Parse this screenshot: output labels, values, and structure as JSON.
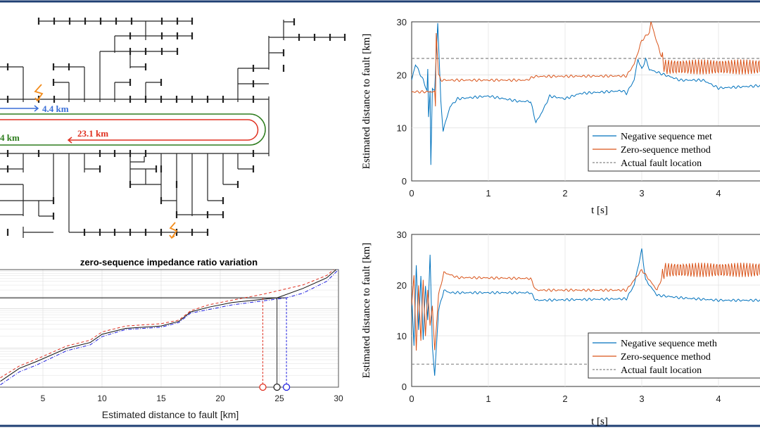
{
  "colors": {
    "frame": "#1f3f73",
    "negative": "#0072bd",
    "zero": "#d95319",
    "actual": "#888888",
    "blue_path": "#3a6fd8",
    "green_path": "#2e7d1e",
    "red_path": "#e03020",
    "fault": "#f28c1c"
  },
  "diagram": {
    "blue_label": "4.4 km",
    "red_label": "23.1 km",
    "green_label": "4 km",
    "icons": [
      "fault-lightning-icon",
      "fault-lightning-icon"
    ]
  },
  "chart_data": [
    {
      "type": "line",
      "title": "zero-sequence impedance ratio variation",
      "xlabel": "Estimated distance to fault [km]",
      "ylabel": "",
      "xticks": [
        "5",
        "10",
        "15",
        "20",
        "25",
        "30"
      ],
      "xlim": [
        1.4,
        30
      ],
      "yscale": "log",
      "grid": true,
      "series": [
        {
          "style": "red-dashed",
          "points": [
            [
              1.4,
              0.08
            ],
            [
              3,
              0.18
            ],
            [
              4.5,
              0.24
            ],
            [
              7,
              0.35
            ],
            [
              9,
              0.4
            ],
            [
              10,
              0.47
            ],
            [
              12,
              0.52
            ],
            [
              15,
              0.54
            ],
            [
              16.5,
              0.57
            ],
            [
              17.5,
              0.65
            ],
            [
              19,
              0.7
            ],
            [
              21,
              0.74
            ],
            [
              23.6,
              0.79
            ],
            [
              27,
              0.87
            ],
            [
              29,
              0.95
            ],
            [
              29.6,
              1.0
            ]
          ]
        },
        {
          "style": "black-solid",
          "points": [
            [
              1.4,
              0.05
            ],
            [
              3,
              0.16
            ],
            [
              4.5,
              0.22
            ],
            [
              7,
              0.33
            ],
            [
              9,
              0.38
            ],
            [
              10,
              0.45
            ],
            [
              12,
              0.5
            ],
            [
              15,
              0.52
            ],
            [
              16.5,
              0.56
            ],
            [
              17.5,
              0.64
            ],
            [
              19,
              0.68
            ],
            [
              21,
              0.72
            ],
            [
              24.8,
              0.76
            ],
            [
              27,
              0.84
            ],
            [
              29,
              0.93
            ],
            [
              29.8,
              1.0
            ]
          ]
        },
        {
          "style": "blue-dashdot",
          "points": [
            [
              1.4,
              0.02
            ],
            [
              3,
              0.13
            ],
            [
              4.5,
              0.19
            ],
            [
              7,
              0.31
            ],
            [
              9,
              0.36
            ],
            [
              10,
              0.43
            ],
            [
              12,
              0.49
            ],
            [
              15,
              0.51
            ],
            [
              16.5,
              0.55
            ],
            [
              17.5,
              0.63
            ],
            [
              19,
              0.66
            ],
            [
              21,
              0.7
            ],
            [
              25.6,
              0.76
            ],
            [
              27,
              0.8
            ],
            [
              29,
              0.9
            ],
            [
              30,
              1.0
            ]
          ]
        }
      ],
      "threshold_level": 0.76,
      "intersections_km": {
        "red": 23.6,
        "black": 24.8,
        "blue": 25.6
      }
    },
    {
      "type": "line",
      "xlabel": "t [s]",
      "ylabel": "Estimated distance to fault [km]",
      "xticks": [
        "0",
        "1",
        "2",
        "3",
        "4"
      ],
      "yticks": [
        "0",
        "10",
        "20",
        "30"
      ],
      "ylim": [
        0,
        30
      ],
      "grid": true,
      "legend_position": "bottom-right",
      "series": [
        {
          "name": "Negative sequence met",
          "points": [
            [
              0,
              19
            ],
            [
              0.05,
              22
            ],
            [
              0.1,
              20.5
            ],
            [
              0.15,
              19
            ],
            [
              0.2,
              17
            ],
            [
              0.21,
              21
            ],
            [
              0.22,
              12
            ],
            [
              0.24,
              17
            ],
            [
              0.25,
              3
            ],
            [
              0.27,
              17.5
            ],
            [
              0.3,
              17
            ],
            [
              0.34,
              30
            ],
            [
              0.38,
              15
            ],
            [
              0.41,
              9.5
            ],
            [
              0.5,
              14
            ],
            [
              0.6,
              15.5
            ],
            [
              1,
              16
            ],
            [
              1.2,
              15.5
            ],
            [
              1.4,
              15
            ],
            [
              1.55,
              15
            ],
            [
              1.62,
              11
            ],
            [
              1.7,
              13
            ],
            [
              1.8,
              16
            ],
            [
              2,
              15.5
            ],
            [
              2.2,
              16.5
            ],
            [
              2.75,
              17
            ],
            [
              2.8,
              16.5
            ],
            [
              2.9,
              19
            ],
            [
              2.95,
              23
            ],
            [
              3,
              21
            ],
            [
              3.05,
              23
            ],
            [
              3.1,
              21
            ],
            [
              3.3,
              20
            ],
            [
              3.5,
              19
            ],
            [
              3.8,
              19
            ],
            [
              4,
              17.5
            ],
            [
              4.6,
              18
            ]
          ]
        },
        {
          "name": "Zero-sequence method",
          "points": [
            [
              0,
              16.8
            ],
            [
              0.3,
              16.8
            ],
            [
              0.31,
              14
            ],
            [
              0.32,
              28
            ],
            [
              0.35,
              20
            ],
            [
              0.38,
              19
            ],
            [
              1.5,
              19
            ],
            [
              1.6,
              19.7
            ],
            [
              2.8,
              19.8
            ],
            [
              2.9,
              22
            ],
            [
              3,
              26.5
            ],
            [
              3.1,
              28
            ],
            [
              3.12,
              30
            ],
            [
              3.2,
              26
            ],
            [
              3.3,
              21.5
            ],
            [
              4.6,
              21.5
            ]
          ]
        },
        {
          "name": "Actual fault location",
          "value": 23.1
        }
      ]
    },
    {
      "type": "line",
      "xlabel": "t [s]",
      "ylabel": "Estimated distance to fault [km]",
      "xticks": [
        "0",
        "1",
        "2",
        "3",
        "4"
      ],
      "yticks": [
        "0",
        "10",
        "20",
        "30"
      ],
      "ylim": [
        0,
        30
      ],
      "grid": true,
      "legend_position": "bottom-right",
      "series": [
        {
          "name": "Negative sequence meth",
          "points": [
            [
              0,
              18
            ],
            [
              0.03,
              8
            ],
            [
              0.06,
              24
            ],
            [
              0.09,
              11
            ],
            [
              0.12,
              22
            ],
            [
              0.15,
              9
            ],
            [
              0.18,
              20
            ],
            [
              0.21,
              13
            ],
            [
              0.24,
              26
            ],
            [
              0.27,
              8
            ],
            [
              0.3,
              2
            ],
            [
              0.35,
              15
            ],
            [
              0.42,
              19
            ],
            [
              0.5,
              18.5
            ],
            [
              1.55,
              18.5
            ],
            [
              1.62,
              17
            ],
            [
              2.8,
              17.3
            ],
            [
              2.9,
              20
            ],
            [
              3,
              27
            ],
            [
              3.05,
              21
            ],
            [
              3.2,
              18
            ],
            [
              3.5,
              17.5
            ],
            [
              4,
              17
            ],
            [
              4.6,
              17
            ]
          ]
        },
        {
          "name": "Zero-sequence method",
          "points": [
            [
              0,
              16
            ],
            [
              0.03,
              22
            ],
            [
              0.06,
              7
            ],
            [
              0.09,
              20
            ],
            [
              0.12,
              9
            ],
            [
              0.15,
              21
            ],
            [
              0.18,
              10
            ],
            [
              0.21,
              19
            ],
            [
              0.24,
              12
            ],
            [
              0.27,
              16
            ],
            [
              0.3,
              7
            ],
            [
              0.35,
              18
            ],
            [
              0.42,
              22.5
            ],
            [
              0.6,
              21.5
            ],
            [
              1.55,
              21.3
            ],
            [
              1.62,
              19
            ],
            [
              2.8,
              19
            ],
            [
              3,
              23
            ],
            [
              3.1,
              21
            ],
            [
              3.2,
              19
            ],
            [
              3.3,
              23
            ],
            [
              4.6,
              23
            ]
          ]
        },
        {
          "name": "Actual fault location",
          "value": 4.4
        }
      ]
    }
  ]
}
